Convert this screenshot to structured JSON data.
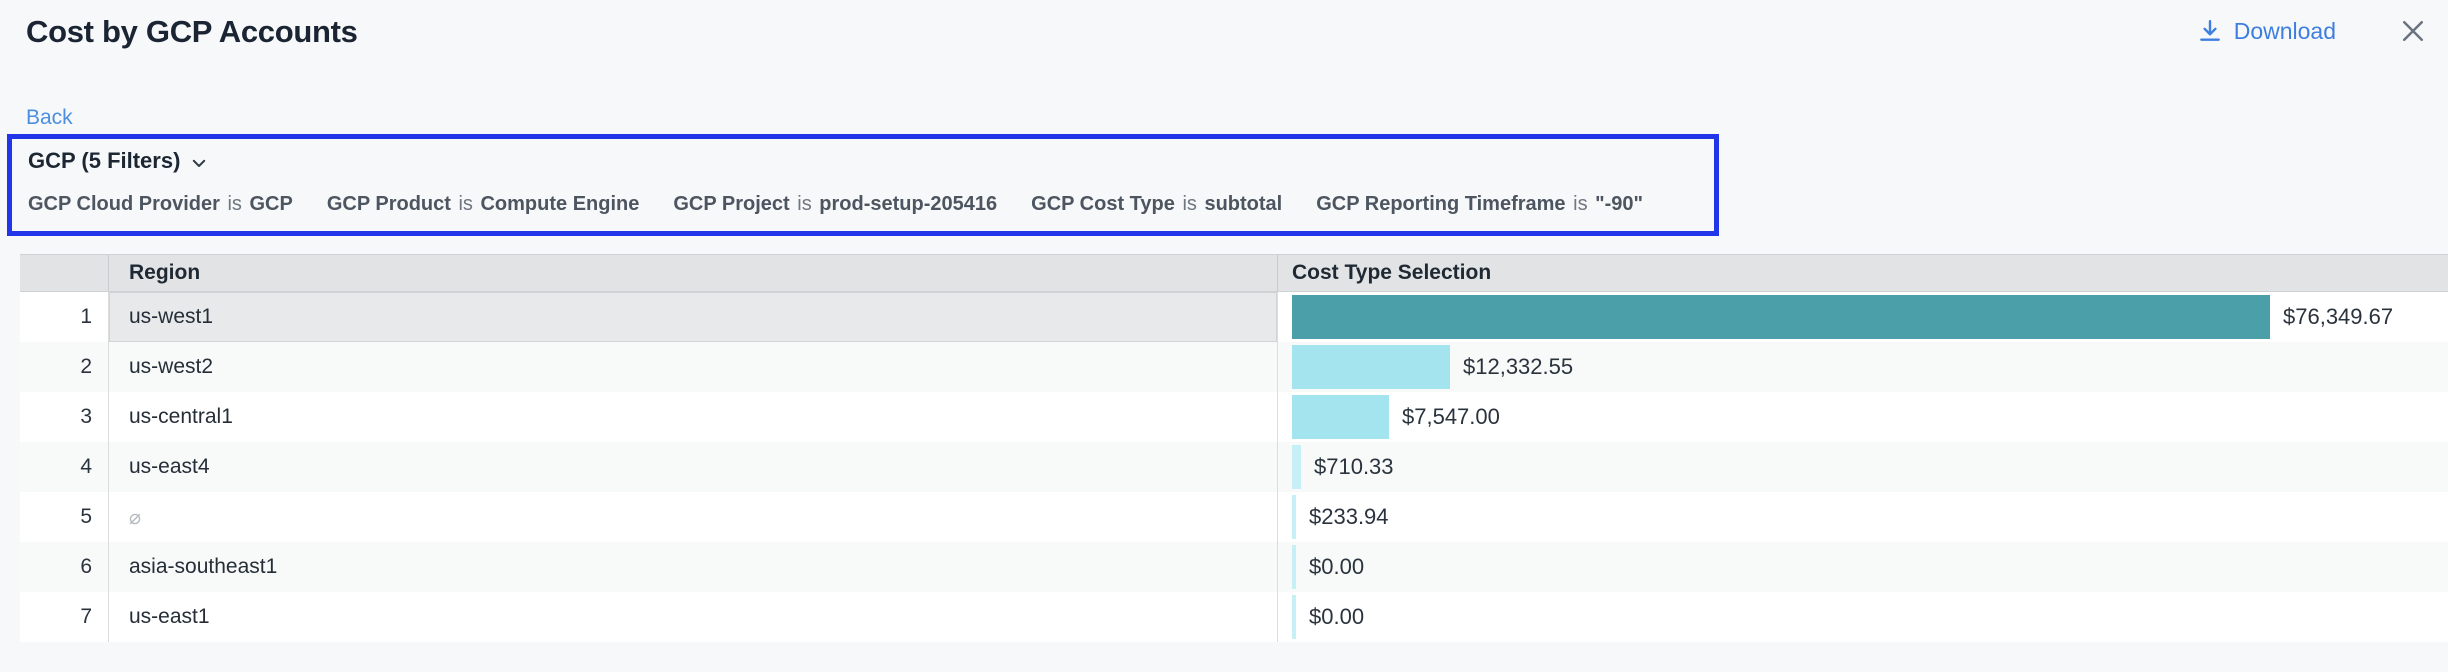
{
  "header": {
    "title": "Cost by GCP Accounts",
    "download_label": "Download"
  },
  "nav": {
    "back_label": "Back"
  },
  "filter_bar": {
    "summary_label": "GCP (5 Filters)",
    "filters": [
      {
        "field": "GCP Cloud Provider",
        "op": "is",
        "value": "GCP"
      },
      {
        "field": "GCP Product",
        "op": "is",
        "value": "Compute Engine"
      },
      {
        "field": "GCP Project",
        "op": "is",
        "value": "prod-setup-205416"
      },
      {
        "field": "GCP Cost Type",
        "op": "is",
        "value": "subtotal"
      },
      {
        "field": "GCP Reporting Timeframe",
        "op": "is",
        "value": "\"-90\""
      }
    ]
  },
  "table": {
    "columns": {
      "region": "Region",
      "cost": "Cost Type Selection"
    },
    "rows": [
      {
        "index": "1",
        "region": "us-west1",
        "cost_label": "$76,349.67",
        "cost_value": 76349.67,
        "selected": true,
        "muted": false
      },
      {
        "index": "2",
        "region": "us-west2",
        "cost_label": "$12,332.55",
        "cost_value": 12332.55,
        "selected": false,
        "muted": false
      },
      {
        "index": "3",
        "region": "us-central1",
        "cost_label": "$7,547.00",
        "cost_value": 7547.0,
        "selected": false,
        "muted": false
      },
      {
        "index": "4",
        "region": "us-east4",
        "cost_label": "$710.33",
        "cost_value": 710.33,
        "selected": false,
        "muted": false
      },
      {
        "index": "5",
        "region": "⌀",
        "cost_label": "$233.94",
        "cost_value": 233.94,
        "selected": false,
        "muted": true
      },
      {
        "index": "6",
        "region": "asia-southeast1",
        "cost_label": "$0.00",
        "cost_value": 0.0,
        "selected": false,
        "muted": false
      },
      {
        "index": "7",
        "region": "us-east1",
        "cost_label": "$0.00",
        "cost_value": 0.0,
        "selected": false,
        "muted": false
      }
    ]
  },
  "chart_data": {
    "type": "bar",
    "orientation": "horizontal",
    "title": "Cost by GCP Accounts",
    "categories": [
      "us-west1",
      "us-west2",
      "us-central1",
      "us-east4",
      "⌀",
      "asia-southeast1",
      "us-east1"
    ],
    "values": [
      76349.67,
      12332.55,
      7547.0,
      710.33,
      233.94,
      0.0,
      0.0
    ],
    "value_labels": [
      "$76,349.67",
      "$12,332.55",
      "$7,547.00",
      "$710.33",
      "$233.94",
      "$0.00",
      "$0.00"
    ],
    "xlabel": "Cost Type Selection",
    "ylabel": "Region",
    "xlim": [
      0,
      76349.67
    ],
    "grid": false,
    "legend": false
  },
  "colors": {
    "accent_border": "#2136e8",
    "link_blue": "#4b8fe2",
    "download_blue": "#3e7ee0",
    "bar_selected": "#4a9fa8",
    "bar_default": "#a3e4ee",
    "bar_sliver": "#c6eff6",
    "header_bg": "#e1e3e5",
    "selected_cell_bg": "#e8e9ea",
    "stripe_bg": "#f8f9f9"
  }
}
